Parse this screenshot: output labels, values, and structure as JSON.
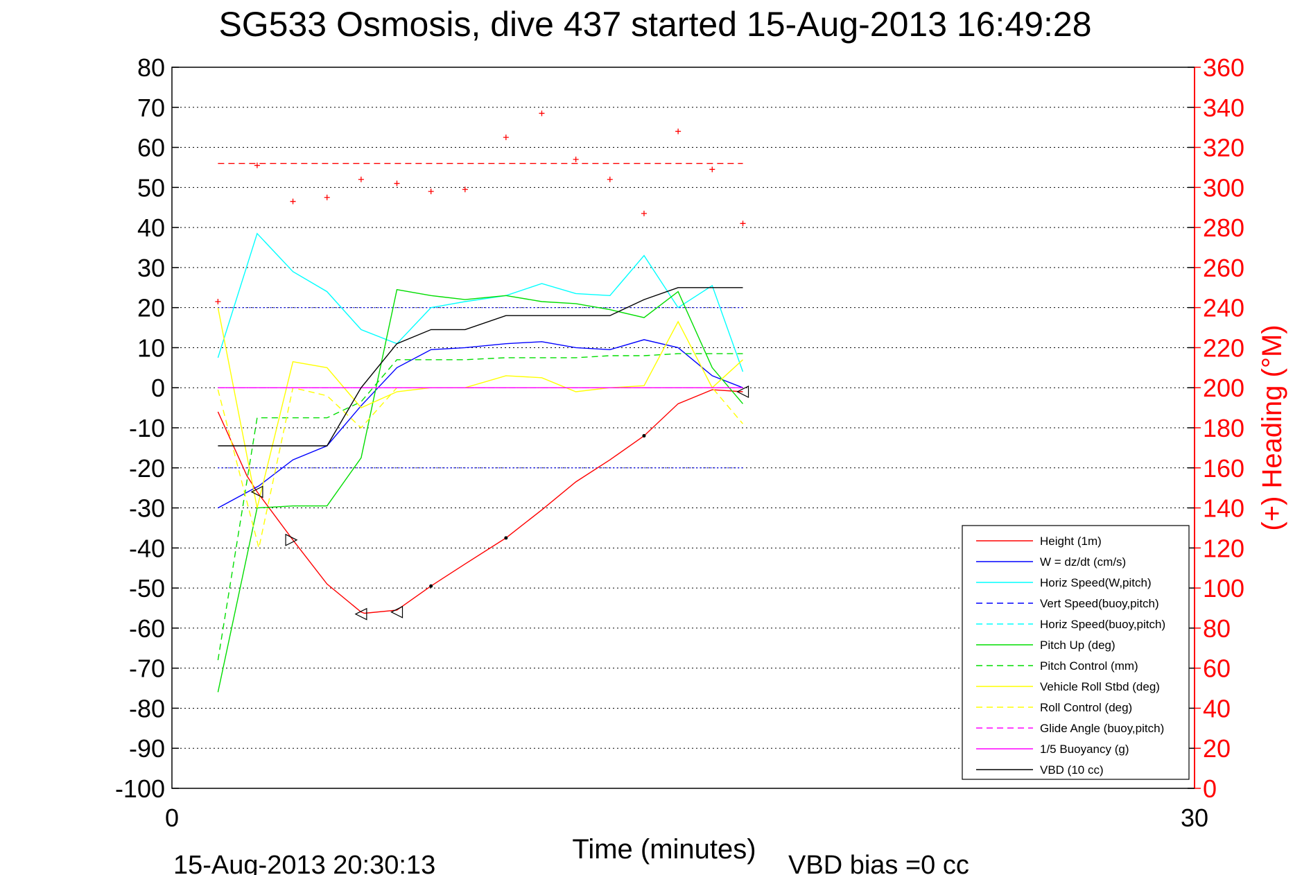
{
  "chart_data": {
    "type": "line",
    "title": "SG533 Osmosis, dive 437 started 15-Aug-2013 16:49:28",
    "xlabel": "Time (minutes)",
    "ylabel": "",
    "ylabel_right": "(+) Heading (°M)",
    "xlim": [
      0,
      30
    ],
    "ylim": [
      -100,
      80
    ],
    "ylim_right": [
      0,
      360
    ],
    "x_ticks": [
      "0",
      "30"
    ],
    "y_ticks": [
      "80",
      "70",
      "60",
      "50",
      "40",
      "30",
      "20",
      "10",
      "0",
      "-10",
      "-20",
      "-30",
      "-40",
      "-50",
      "-60",
      "-70",
      "-80",
      "-90",
      "-100"
    ],
    "y_ticks_right": [
      "360",
      "340",
      "320",
      "300",
      "280",
      "260",
      "240",
      "220",
      "200",
      "180",
      "160",
      "140",
      "120",
      "100",
      "80",
      "60",
      "40",
      "20",
      "0"
    ],
    "grid": "dotted",
    "legend_position": "bottom-right",
    "footer_left": "15-Aug-2013 20:30:13",
    "footer_right": "VBD bias =0 cc",
    "series": [
      {
        "name": "Height (1m)",
        "color": "#ff0000",
        "style": "solid",
        "x": [
          1.35,
          2.2,
          2.5,
          3.55,
          4.55,
          5.55,
          5.65,
          6.6,
          7.6,
          8.6,
          9.8,
          10.85,
          11.85,
          12.85,
          13.85,
          14.85,
          15.85,
          16.75
        ],
        "y": [
          -6,
          -22,
          -26,
          -38,
          -49,
          -56,
          -56.3,
          -55.5,
          -49.5,
          -44,
          -37.5,
          -30.5,
          -23.5,
          -18,
          -12,
          -4,
          -0.5,
          -1
        ]
      },
      {
        "name": "W = dz/dt (cm/s)",
        "color": "#0000ff",
        "style": "solid",
        "x": [
          1.35,
          2.55,
          3.55,
          4.55,
          5.55,
          6.6,
          7.6,
          8.6,
          9.8,
          10.85,
          11.85,
          12.85,
          13.85,
          14.85,
          15.85,
          16.75
        ],
        "y": [
          -30,
          -24.5,
          -18,
          -14.5,
          -4.5,
          5,
          9.5,
          10,
          11,
          11.5,
          10,
          9.5,
          12,
          10,
          3,
          0
        ]
      },
      {
        "name": "Horiz Speed(W,pitch)",
        "color": "#00ffff",
        "style": "solid",
        "x": [
          1.35,
          2.5,
          3.55,
          4.55,
          5.55,
          6.6,
          7.6,
          8.6,
          9.8,
          10.85,
          11.85,
          12.85,
          13.85,
          14.85,
          15.85,
          16.75
        ],
        "y": [
          7.5,
          38.5,
          29,
          24,
          14.5,
          11,
          20,
          21.5,
          23,
          26,
          23.5,
          23,
          33,
          20,
          25.5,
          4
        ]
      },
      {
        "name": "Vert Speed(buoy,pitch)",
        "color": "#0000ff",
        "style": "dashed",
        "x": [
          1.35,
          16.75
        ],
        "y": [
          0,
          0
        ]
      },
      {
        "name": "Horiz Speed(buoy,pitch)",
        "color": "#00ffff",
        "style": "dashed",
        "x": [
          1.35,
          16.75
        ],
        "y": [
          0,
          0
        ]
      },
      {
        "name": "Pitch Up (deg)",
        "color": "#00dd00",
        "style": "solid",
        "x": [
          1.35,
          2.5,
          3.55,
          4.55,
          5.55,
          6.6,
          7.6,
          8.6,
          9.8,
          10.85,
          11.85,
          12.85,
          13.85,
          14.85,
          15.85,
          16.75
        ],
        "y": [
          -76,
          -30,
          -29.5,
          -29.5,
          -17.5,
          24.5,
          23,
          22,
          23,
          21.5,
          21,
          19.5,
          17.5,
          24,
          5,
          -4
        ]
      },
      {
        "name": "Pitch Control (mm)",
        "color": "#00dd00",
        "style": "dashed",
        "x": [
          1.35,
          2.5,
          3.55,
          4.55,
          5.55,
          6.6,
          7.6,
          8.6,
          9.8,
          10.85,
          11.85,
          12.85,
          13.85,
          14.85,
          15.85,
          16.75
        ],
        "y": [
          -68,
          -7.5,
          -7.5,
          -7.5,
          -3.5,
          7,
          7,
          7,
          7.5,
          7.5,
          7.5,
          8,
          8,
          8.5,
          8.5,
          8.5
        ]
      },
      {
        "name": "Vehicle Roll Stbd (deg)",
        "color": "#ffff00",
        "style": "solid",
        "x": [
          1.35,
          2.5,
          3.55,
          4.55,
          5.55,
          6.6,
          7.6,
          8.6,
          9.8,
          10.85,
          11.85,
          12.85,
          13.85,
          14.85,
          15.85,
          16.75
        ],
        "y": [
          20,
          -30,
          6.5,
          5,
          -5,
          -1,
          0,
          0,
          3,
          2.5,
          -1,
          0,
          0.5,
          16.5,
          0,
          7
        ]
      },
      {
        "name": "Roll Control (deg)",
        "color": "#ffff00",
        "style": "dashed",
        "x": [
          1.35,
          2.55,
          3.55,
          4.55,
          5.55,
          6.6,
          7.6,
          8.6,
          9.8,
          10.85,
          11.85,
          12.85,
          13.85,
          14.85,
          15.85,
          16.75
        ],
        "y": [
          -0.5,
          -40,
          0,
          -2,
          -10,
          0,
          0,
          0,
          0,
          0,
          0,
          0,
          0,
          0,
          0,
          -9
        ]
      },
      {
        "name": "Glide Angle (buoy,pitch)",
        "color": "#ff00ff",
        "style": "dashed",
        "x": [
          1.35,
          16.75
        ],
        "y": [
          0,
          0
        ]
      },
      {
        "name": "1/5 Buoyancy (g)",
        "color": "#ff00ff",
        "style": "solid",
        "x": [
          1.35,
          16.75
        ],
        "y": [
          0,
          0
        ]
      },
      {
        "name": "VBD (10 cc)",
        "color": "#000000",
        "style": "solid",
        "x": [
          1.35,
          2.55,
          3.55,
          4.55,
          5.55,
          6.6,
          7.6,
          8.6,
          9.8,
          10.85,
          11.85,
          12.85,
          13.85,
          14.85,
          15.85,
          16.75
        ],
        "y": [
          -14.5,
          -14.5,
          -14.5,
          -14.5,
          0,
          11,
          14.5,
          14.5,
          18,
          18,
          18,
          18,
          22,
          25,
          25,
          25
        ]
      }
    ],
    "heading_points": {
      "name": "Heading",
      "color": "#ff0000",
      "x": [
        1.35,
        2.5,
        3.55,
        4.55,
        5.55,
        6.6,
        7.6,
        8.6,
        9.8,
        10.85,
        11.85,
        12.85,
        13.85,
        14.85,
        15.85,
        16.75
      ],
      "y": [
        243,
        311,
        293,
        295,
        304,
        302,
        298,
        299,
        325,
        337,
        314,
        304,
        287,
        328,
        309,
        282
      ]
    },
    "heading_target": {
      "color": "#ff0000",
      "style": "dashed",
      "x": [
        1.35,
        16.75
      ],
      "y": [
        312,
        312
      ]
    },
    "dotted_reference_lines": {
      "color": "#0000ff",
      "x": [
        1.35,
        16.75
      ],
      "y": [
        20,
        -20
      ]
    },
    "triangle_markers": {
      "color": "#000000",
      "points": [
        {
          "x": 2.5,
          "y": -26,
          "dir": "left"
        },
        {
          "x": 3.5,
          "y": -38,
          "dir": "right"
        },
        {
          "x": 5.55,
          "y": -56.5,
          "dir": "left"
        },
        {
          "x": 6.6,
          "y": -56,
          "dir": "left"
        },
        {
          "x": 16.75,
          "y": -1,
          "dir": "left"
        }
      ]
    },
    "dot_markers": {
      "color": "#000000",
      "points": [
        {
          "x": 7.6,
          "y": -49.5
        },
        {
          "x": 9.8,
          "y": -37.5
        },
        {
          "x": 13.85,
          "y": -12
        }
      ]
    }
  }
}
